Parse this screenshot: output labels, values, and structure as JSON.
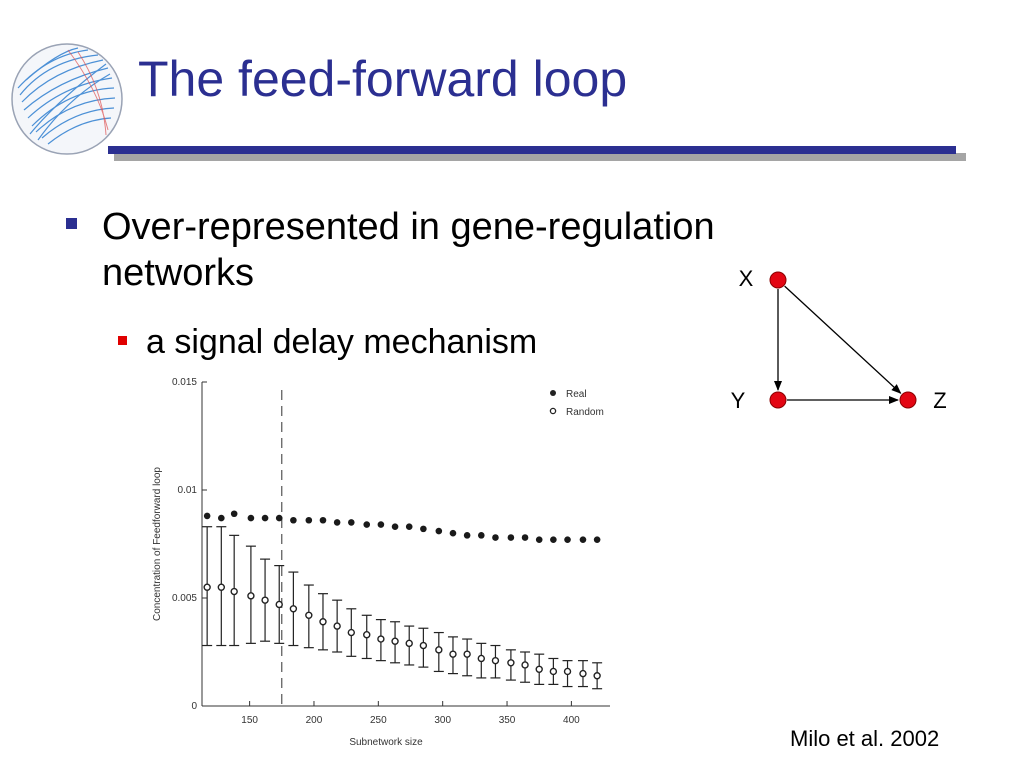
{
  "slide": {
    "title": "The feed-forward loop",
    "bullets": [
      {
        "text": "Over-represented in gene-regulation networks",
        "sub": [
          "a signal delay mechanism"
        ]
      }
    ],
    "citation": "Milo et al. 2002"
  },
  "diagram": {
    "nodes": [
      {
        "id": "X",
        "label": "X"
      },
      {
        "id": "Y",
        "label": "Y"
      },
      {
        "id": "Z",
        "label": "Z"
      }
    ],
    "edges": [
      [
        "X",
        "Y"
      ],
      [
        "X",
        "Z"
      ],
      [
        "Y",
        "Z"
      ]
    ],
    "node_color": "#e30613"
  },
  "colors": {
    "title": "#2b2f91",
    "rule": "#2b2f91",
    "rule_shadow": "#a5a5a5",
    "bullet_level1": "#2b2f91",
    "bullet_level2": "#e00000"
  },
  "icons": [
    "network-logo-icon"
  ],
  "chart_data": {
    "type": "scatter",
    "title": "",
    "xlabel": "Subnetwork size",
    "ylabel": "Concentration of Feedforward loop",
    "xlim": [
      113,
      430
    ],
    "ylim": [
      0,
      0.015
    ],
    "xticks": [
      150,
      200,
      250,
      300,
      350,
      400
    ],
    "yticks": [
      0,
      0.005,
      0.01,
      0.015
    ],
    "ytick_labels": [
      "0",
      "0.005",
      "0.01",
      "0.015"
    ],
    "vline_x": 175,
    "legend": {
      "position": "top-right",
      "entries": [
        "Real",
        "Random"
      ]
    },
    "series": [
      {
        "name": "Real",
        "marker": "filled",
        "x": [
          117,
          128,
          138,
          151,
          162,
          173,
          184,
          196,
          207,
          218,
          229,
          241,
          252,
          263,
          274,
          285,
          297,
          308,
          319,
          330,
          341,
          353,
          364,
          375,
          386,
          397,
          409,
          420
        ],
        "y": [
          0.0088,
          0.0087,
          0.0089,
          0.0087,
          0.0087,
          0.0087,
          0.0086,
          0.0086,
          0.0086,
          0.0085,
          0.0085,
          0.0084,
          0.0084,
          0.0083,
          0.0083,
          0.0082,
          0.0081,
          0.008,
          0.0079,
          0.0079,
          0.0078,
          0.0078,
          0.0078,
          0.0077,
          0.0077,
          0.0077,
          0.0077,
          0.0077
        ]
      },
      {
        "name": "Random",
        "marker": "open",
        "x": [
          117,
          128,
          138,
          151,
          162,
          173,
          184,
          196,
          207,
          218,
          229,
          241,
          252,
          263,
          274,
          285,
          297,
          308,
          319,
          330,
          341,
          353,
          364,
          375,
          386,
          397,
          409,
          420
        ],
        "y": [
          0.0055,
          0.0055,
          0.0053,
          0.0051,
          0.0049,
          0.0047,
          0.0045,
          0.0042,
          0.0039,
          0.0037,
          0.0034,
          0.0033,
          0.0031,
          0.003,
          0.0029,
          0.0028,
          0.0026,
          0.0024,
          0.0024,
          0.0022,
          0.0021,
          0.002,
          0.0019,
          0.0017,
          0.0016,
          0.0016,
          0.0015,
          0.0014
        ],
        "err_low": [
          0.0028,
          0.0028,
          0.0028,
          0.0029,
          0.003,
          0.0029,
          0.0028,
          0.0027,
          0.0026,
          0.0025,
          0.0023,
          0.0022,
          0.0021,
          0.002,
          0.0019,
          0.0018,
          0.0016,
          0.0015,
          0.0014,
          0.0013,
          0.0013,
          0.0012,
          0.0011,
          0.001,
          0.001,
          0.0009,
          0.0009,
          0.0008
        ],
        "err_high": [
          0.0083,
          0.0083,
          0.0079,
          0.0074,
          0.0068,
          0.0065,
          0.0062,
          0.0056,
          0.0052,
          0.0049,
          0.0045,
          0.0042,
          0.004,
          0.0039,
          0.0037,
          0.0036,
          0.0034,
          0.0032,
          0.0031,
          0.0029,
          0.0028,
          0.0026,
          0.0025,
          0.0024,
          0.0022,
          0.0021,
          0.0021,
          0.002
        ]
      }
    ]
  }
}
